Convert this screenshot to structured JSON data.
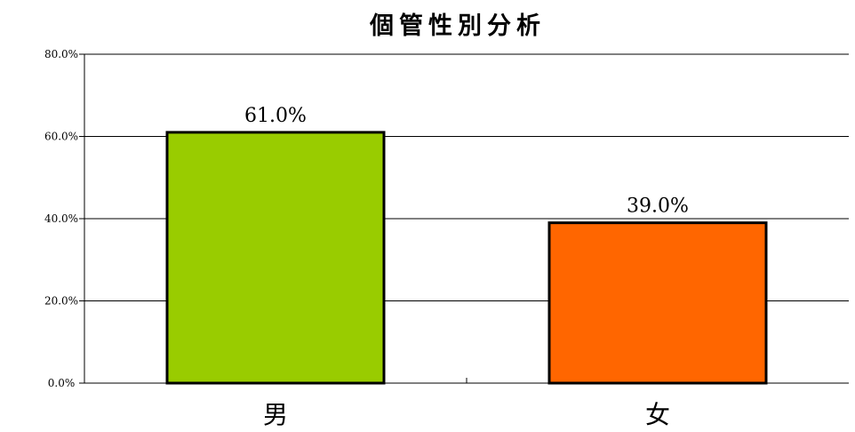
{
  "chart_data": {
    "type": "bar",
    "title": "個管性別分析",
    "categories": [
      "男",
      "女"
    ],
    "values": [
      61.0,
      39.0
    ],
    "data_labels": [
      "61.0%",
      "39.0%"
    ],
    "bar_colors": [
      "#99CC00",
      "#FF6600"
    ],
    "ylim": [
      0,
      80
    ],
    "yticks": [
      0,
      20,
      40,
      60,
      80
    ],
    "ytick_labels": [
      "0.0%",
      "20.0%",
      "40.0%",
      "60.0%",
      "80.0%"
    ],
    "grid": true,
    "legend": "none"
  }
}
